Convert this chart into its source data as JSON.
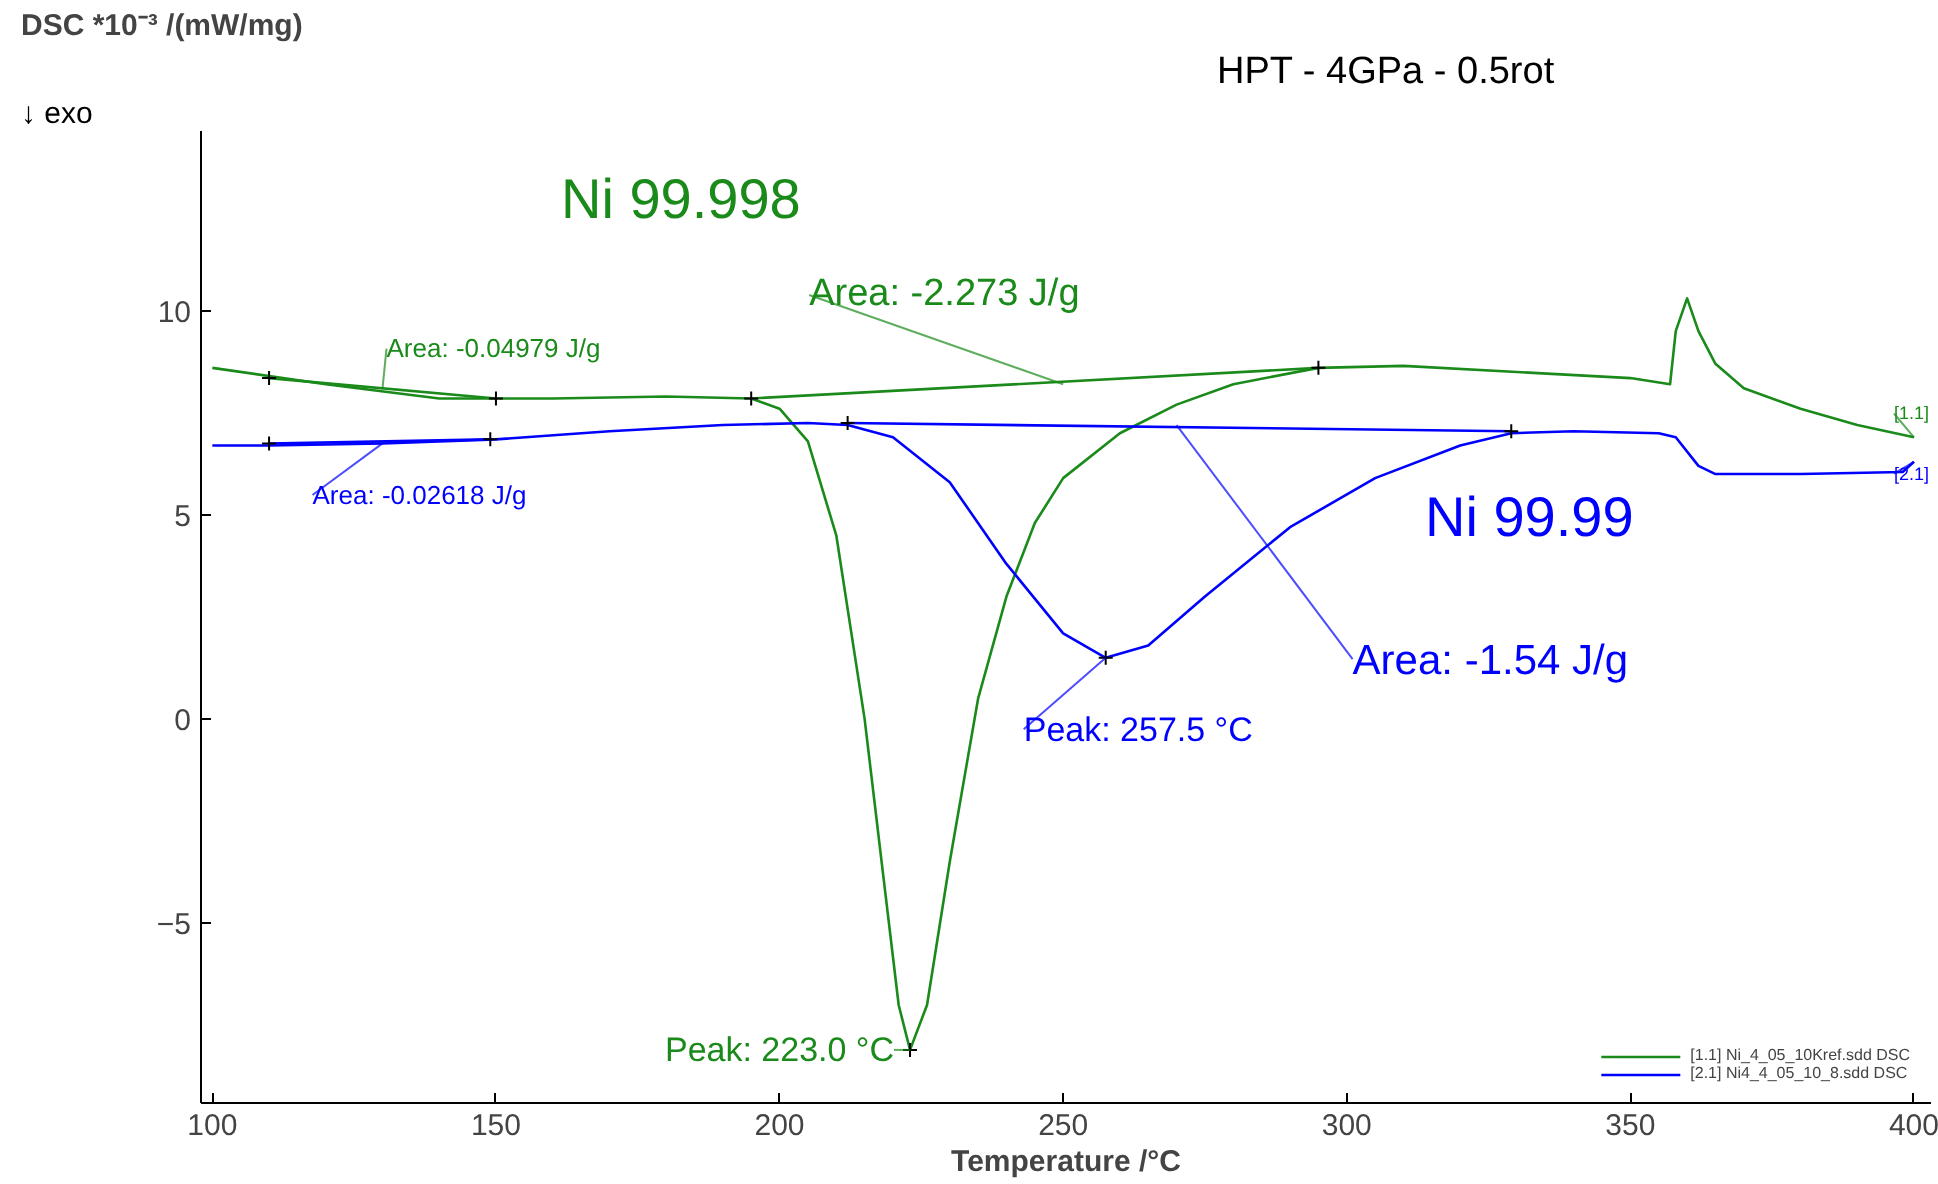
{
  "chart_data": {
    "type": "line",
    "xlabel": "Temperature /°C",
    "ylabel": "DSC *10⁻³ /(mW/mg)",
    "xlim": [
      98,
      403
    ],
    "ylim": [
      -9.4,
      14.4
    ],
    "xticks": [
      100,
      150,
      200,
      250,
      300,
      350,
      400
    ],
    "yticks": [
      -5,
      0,
      5,
      10
    ],
    "grid": false,
    "legend": "bottom right",
    "series": [
      {
        "name": "[1.1] Ni_4_05_10Kref.sdd DSC",
        "color": "#1a8a1a",
        "x": [
          100,
          120,
          140,
          160,
          180,
          195,
          200,
          205,
          210,
          215,
          218,
          221,
          223,
          226,
          230,
          235,
          240,
          245,
          250,
          260,
          270,
          280,
          295,
          310,
          330,
          350,
          357,
          358,
          360,
          362,
          365,
          370,
          380,
          390,
          400
        ],
        "values": [
          8.6,
          8.2,
          7.85,
          7.85,
          7.9,
          7.85,
          7.6,
          6.8,
          4.5,
          0,
          -3.5,
          -7,
          -8.1,
          -7,
          -3.5,
          0.5,
          3,
          4.8,
          5.9,
          7.0,
          7.7,
          8.2,
          8.6,
          8.65,
          8.5,
          8.35,
          8.2,
          9.5,
          10.3,
          9.5,
          8.7,
          8.1,
          7.6,
          7.2,
          6.9
        ]
      },
      {
        "name": "[2.1] Ni4_4_05_10_8.sdd DSC",
        "color": "#0000ff",
        "x": [
          100,
          110,
          130,
          150,
          170,
          190,
          205,
          212,
          220,
          230,
          240,
          250,
          257.5,
          265,
          275,
          290,
          305,
          320,
          329,
          340,
          355,
          358,
          362,
          365,
          380,
          398,
          400
        ],
        "values": [
          6.7,
          6.7,
          6.75,
          6.85,
          7.05,
          7.2,
          7.25,
          7.2,
          6.9,
          5.8,
          3.8,
          2.1,
          1.5,
          1.8,
          3,
          4.7,
          5.9,
          6.7,
          7.0,
          7.05,
          7.0,
          6.9,
          6.2,
          6.0,
          6.0,
          6.05,
          6.3
        ]
      },
      {
        "color": "#1a8a1a",
        "x": [
          110,
          150
        ],
        "values": [
          8.35,
          7.85
        ]
      },
      {
        "color": "#1a8a1a",
        "x": [
          195,
          295
        ],
        "values": [
          7.85,
          8.6
        ]
      },
      {
        "color": "#0000ff",
        "x": [
          110,
          149
        ],
        "values": [
          6.75,
          6.85
        ]
      },
      {
        "color": "#0000ff",
        "x": [
          212,
          329
        ],
        "values": [
          7.25,
          7.05
        ]
      },
      {
        "type": "scatter",
        "marker": "cross",
        "color": "#000000",
        "x": [
          110,
          150,
          195,
          223,
          295,
          110,
          149,
          212,
          257.5,
          329
        ],
        "values": [
          8.35,
          7.85,
          7.85,
          -8.1,
          8.6,
          6.75,
          6.85,
          7.25,
          1.5,
          7.05
        ]
      }
    ],
    "annotations": [
      {
        "text": "Area: -0.04979 J/g",
        "x": 130,
        "y": 8.1
      },
      {
        "text": "Area: -0.02618 J/g",
        "x": 130,
        "y": 6.75
      },
      {
        "text": "Area: -2.273 J/g",
        "x": 250,
        "y": 8.2
      },
      {
        "text": "Area: -1.54 J/g",
        "x": 270,
        "y": 7.2
      },
      {
        "text": "Peak: 223.0 °C",
        "x": 223,
        "y": -8.1
      },
      {
        "text": "Peak: 257.5 °C",
        "x": 257.5,
        "y": 1.5
      },
      "Ni 99.998",
      "Ni 99.99",
      "HPT - 4GPa - 0.5rot",
      "↓ exo",
      {
        "text": "[1.1]",
        "x": 400,
        "y": 6.9
      },
      {
        "text": "[2.1]",
        "x": 400,
        "y": 6.3
      }
    ]
  }
}
